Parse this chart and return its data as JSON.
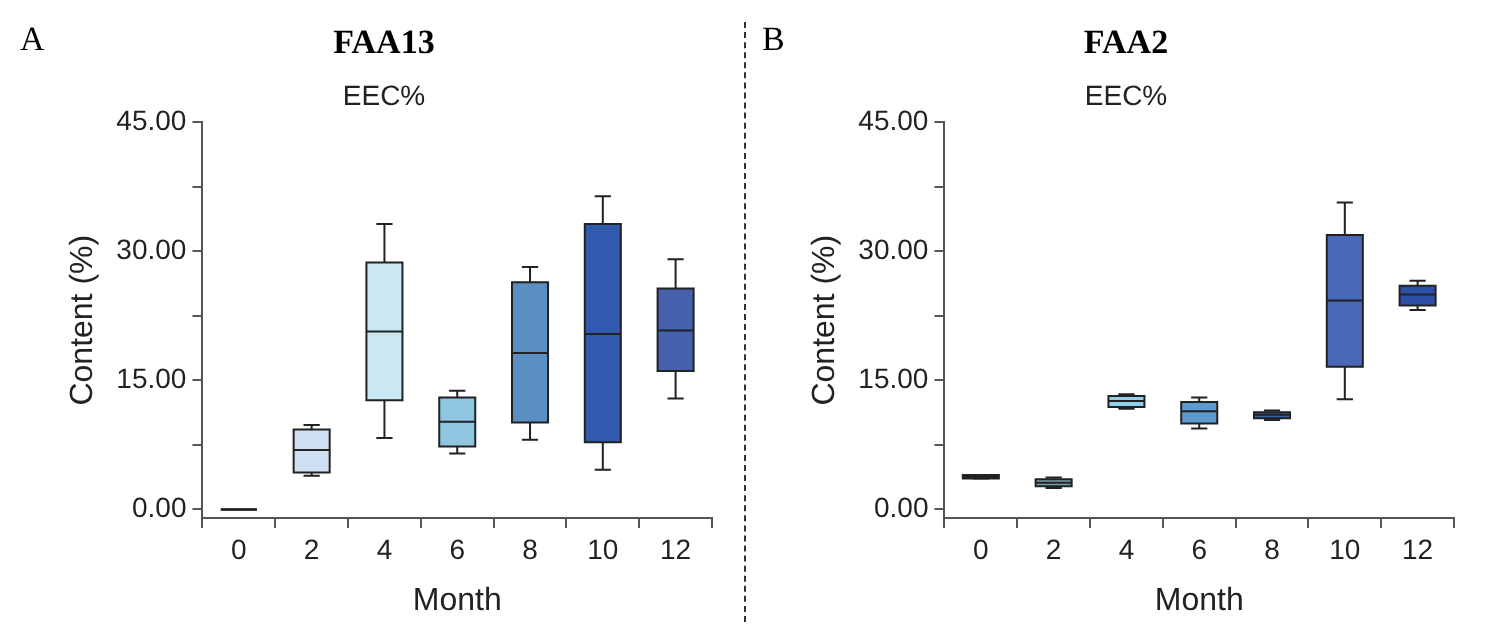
{
  "chart_data": [
    {
      "type": "box",
      "title": "FAA13",
      "subtitle": "EEC%",
      "annotations": [
        "A"
      ],
      "xlabel": "Month",
      "ylabel": "Content (%)",
      "categories": [
        "0",
        "2",
        "4",
        "6",
        "8",
        "10",
        "12"
      ],
      "boxes": [
        {
          "low": 0,
          "q1": 0,
          "median": 0,
          "q3": 0,
          "high": 0
        },
        {
          "low": 3.9,
          "q1": 4.3,
          "median": 6.9,
          "q3": 9.3,
          "high": 9.8
        },
        {
          "low": 8.3,
          "q1": 12.7,
          "median": 20.7,
          "q3": 28.7,
          "high": 33.2
        },
        {
          "low": 6.5,
          "q1": 7.3,
          "median": 10.2,
          "q3": 13.0,
          "high": 13.8
        },
        {
          "low": 8.1,
          "q1": 10.1,
          "median": 18.2,
          "q3": 26.4,
          "high": 28.2
        },
        {
          "low": 4.6,
          "q1": 7.8,
          "median": 20.4,
          "q3": 33.2,
          "high": 36.4
        },
        {
          "low": 12.9,
          "q1": 16.1,
          "median": 20.8,
          "q3": 25.7,
          "high": 29.1
        }
      ],
      "colors": [
        "#222222",
        "#cfe0f2",
        "#c9e8f3",
        "#8ec5e0",
        "#5a8fc4",
        "#2f5aad",
        "#4760ac"
      ],
      "ylim": [
        -1,
        45
      ],
      "yticks": [
        {
          "value": 0,
          "label": "0.00"
        },
        {
          "value": 7.5,
          "label": null
        },
        {
          "value": 15,
          "label": "15.00"
        },
        {
          "value": 22.5,
          "label": null
        },
        {
          "value": 30,
          "label": "30.00"
        },
        {
          "value": 37.5,
          "label": null
        },
        {
          "value": 45,
          "label": "45.00"
        }
      ],
      "grid": false,
      "legend": false
    },
    {
      "type": "box",
      "title": "FAA2",
      "subtitle": "EEC%",
      "annotations": [
        "B"
      ],
      "xlabel": "Month",
      "ylabel": "Content (%)",
      "categories": [
        "0",
        "2",
        "4",
        "6",
        "8",
        "10",
        "12"
      ],
      "boxes": [
        {
          "low": 3.6,
          "q1": 3.6,
          "median": 3.8,
          "q3": 4.0,
          "high": 4.0
        },
        {
          "low": 2.5,
          "q1": 2.7,
          "median": 3.1,
          "q3": 3.5,
          "high": 3.7
        },
        {
          "low": 11.7,
          "q1": 11.9,
          "median": 12.6,
          "q3": 13.2,
          "high": 13.4
        },
        {
          "low": 9.4,
          "q1": 10.0,
          "median": 11.4,
          "q3": 12.5,
          "high": 13.0
        },
        {
          "low": 10.4,
          "q1": 10.6,
          "median": 11.0,
          "q3": 11.3,
          "high": 11.5
        },
        {
          "low": 12.8,
          "q1": 16.6,
          "median": 24.3,
          "q3": 31.9,
          "high": 35.7
        },
        {
          "low": 23.2,
          "q1": 23.7,
          "median": 25.0,
          "q3": 26.0,
          "high": 26.6
        }
      ],
      "colors": [
        "#222222",
        "#7a9cb0",
        "#8fd0ec",
        "#5e9ad0",
        "#3a60a8",
        "#4a68b8",
        "#2c50a8"
      ],
      "ylim": [
        -1,
        45
      ],
      "yticks": [
        {
          "value": 0,
          "label": "0.00"
        },
        {
          "value": 7.5,
          "label": null
        },
        {
          "value": 15,
          "label": "15.00"
        },
        {
          "value": 22.5,
          "label": null
        },
        {
          "value": 30,
          "label": "30.00"
        },
        {
          "value": 37.5,
          "label": null
        },
        {
          "value": 45,
          "label": "45.00"
        }
      ],
      "grid": false,
      "legend": false
    }
  ]
}
